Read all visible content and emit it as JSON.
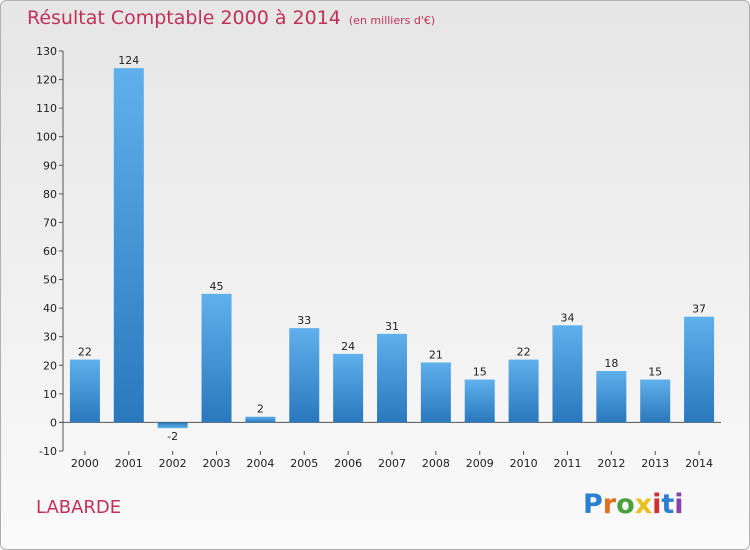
{
  "title": "Résultat Comptable 2000 à 2014",
  "subtitle": "(en milliers d'€)",
  "commune": "LABARDE",
  "logo": {
    "letters": [
      "P",
      "r",
      "o",
      "x",
      "i",
      "t",
      "i"
    ],
    "colors": [
      "#2a7fd0",
      "#e07020",
      "#4aa040",
      "#e8c020",
      "#d03030",
      "#2a7fd0",
      "#8a3fb0"
    ]
  },
  "colors": {
    "title": "#c0305a",
    "bar_light": "#5fb0ec",
    "bar_dark": "#2a78bd"
  },
  "chart_data": {
    "type": "bar",
    "categories": [
      "2000",
      "2001",
      "2002",
      "2003",
      "2004",
      "2005",
      "2006",
      "2007",
      "2008",
      "2009",
      "2010",
      "2011",
      "2012",
      "2013",
      "2014"
    ],
    "values": [
      22,
      124,
      -2,
      45,
      2,
      33,
      24,
      31,
      21,
      15,
      22,
      34,
      18,
      15,
      37
    ],
    "title": "Résultat Comptable 2000 à 2014",
    "xlabel": "",
    "ylabel": "",
    "ylim": [
      -10,
      130
    ],
    "yticks": [
      -10,
      0,
      10,
      20,
      30,
      40,
      50,
      60,
      70,
      80,
      90,
      100,
      110,
      120,
      130
    ],
    "grid": false,
    "data_labels": true
  }
}
